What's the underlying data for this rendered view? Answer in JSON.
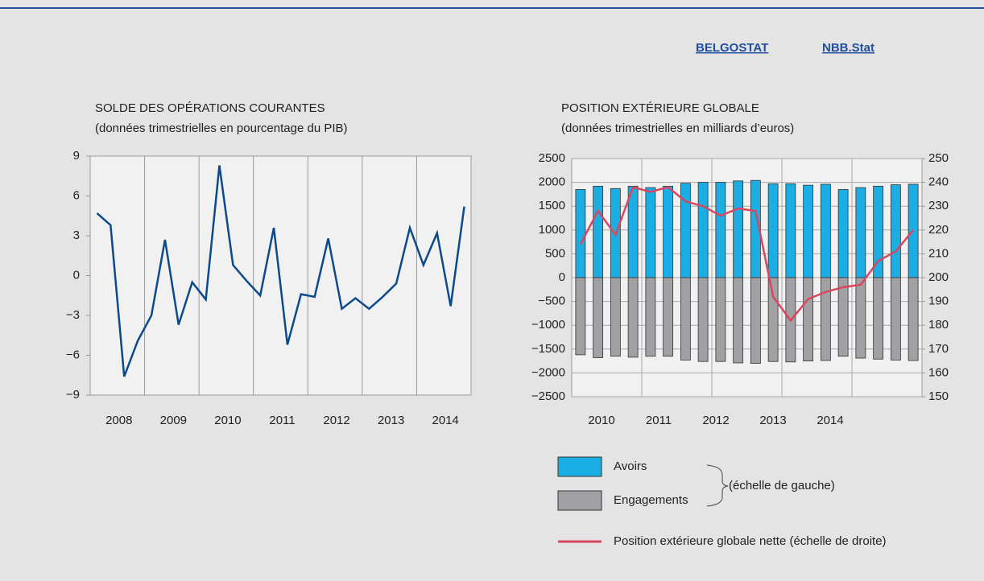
{
  "links": [
    "BELGOSTAT",
    "NBB.Stat"
  ],
  "chart_data": [
    {
      "type": "line",
      "title": "SOLDE DES OPÉRATIONS COURANTES",
      "subtitle": "(données trimestrielles en pourcentage du PIB)",
      "x_labels": [
        "2008",
        "2009",
        "2010",
        "2011",
        "2012",
        "2013",
        "2014"
      ],
      "values": [
        4.7,
        3.8,
        -7.6,
        -4.9,
        -3.0,
        2.7,
        -3.7,
        -0.5,
        -1.8,
        8.3,
        0.8,
        -0.4,
        -1.5,
        3.6,
        -5.2,
        -1.4,
        -1.6,
        2.8,
        -2.5,
        -1.7,
        -2.5,
        -1.6,
        -0.6,
        3.6,
        0.8,
        3.2,
        -2.3,
        5.2
      ],
      "color": "#0d4a8a",
      "ylim": [
        -9,
        9
      ],
      "yticks": [
        9,
        6,
        3,
        0,
        {
          "value": -3,
          "label": "−3"
        },
        {
          "value": -6,
          "label": "−6"
        },
        {
          "value": -9,
          "label": "−9"
        }
      ]
    },
    {
      "type": "bar",
      "title": "POSITION EXTÉRIEURE GLOBALE",
      "subtitle": "(données trimestrielles en milliards d’euros)",
      "x_labels": [
        "2010",
        "2011",
        "2012",
        "2013",
        "2014"
      ],
      "series": [
        {
          "name": "Avoirs",
          "color": "#1aaee5",
          "values": [
            1850,
            1920,
            1870,
            1920,
            1890,
            1920,
            1980,
            2000,
            2000,
            2030,
            2040,
            1970,
            1970,
            1940,
            1960,
            1850,
            1890,
            1920,
            1950,
            1960
          ]
        },
        {
          "name": "Engagements",
          "color": "#a1a1a5",
          "values": [
            -1620,
            -1680,
            -1650,
            -1670,
            -1650,
            -1650,
            -1730,
            -1760,
            -1760,
            -1790,
            -1800,
            -1760,
            -1770,
            -1750,
            -1740,
            -1650,
            -1690,
            -1710,
            -1730,
            -1740
          ]
        },
        {
          "name": "Position extérieure globale nette (échelle de droite)",
          "color": "#d9465f",
          "axis": "y2",
          "values": [
            214,
            228,
            218,
            238,
            236,
            238,
            232,
            230,
            226,
            229,
            228,
            192,
            182,
            191,
            194,
            196,
            197,
            207,
            211,
            220
          ]
        }
      ],
      "legend_note": "(échelle de gauche)",
      "ylim": [
        -2500,
        2500
      ],
      "yticks": [
        2500,
        2000,
        1500,
        1000,
        500,
        0,
        {
          "value": -500,
          "label": "−500"
        },
        {
          "value": -1000,
          "label": "−1000"
        },
        {
          "value": -1500,
          "label": "−1500"
        },
        {
          "value": -2000,
          "label": "−2000"
        },
        {
          "value": -2500,
          "label": "−2500"
        }
      ],
      "y2lim": [
        150,
        250
      ],
      "y2ticks": [
        250,
        240,
        230,
        220,
        210,
        200,
        190,
        180,
        170,
        160,
        150
      ],
      "grid": true
    }
  ]
}
